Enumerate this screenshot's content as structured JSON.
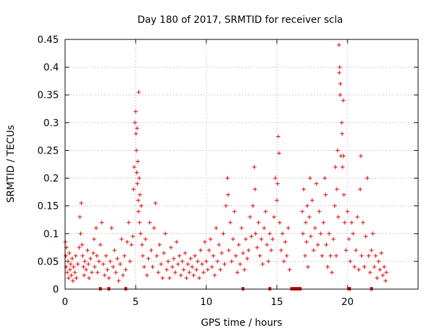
{
  "chart_data": {
    "type": "scatter",
    "title": "Day 180 of 2017, SRMTID for receiver scla",
    "xlabel": "GPS time / hours",
    "ylabel": "SRMTID / TECUs",
    "xlim": [
      0,
      25
    ],
    "ylim": [
      0,
      0.45
    ],
    "grid": true,
    "marker": "+",
    "color": "#e00000",
    "x_ticks": [
      0,
      5,
      10,
      15,
      20
    ],
    "x_tick_labels": [
      "0",
      "5",
      "10",
      "15",
      "20"
    ],
    "y_ticks": [
      0,
      0.05,
      0.1,
      0.15,
      0.2,
      0.25,
      0.3,
      0.35,
      0.4,
      0.45
    ],
    "y_tick_labels": [
      "0",
      "0.05",
      "0.1",
      "0.15",
      "0.2",
      "0.25",
      "0.3",
      "0.35",
      "0.4",
      "0.45"
    ],
    "zero_markers_x": [
      2.5,
      3.1,
      4.3,
      12.6,
      14.5,
      21.7
    ],
    "zero_segments": [
      [
        15.95,
        16.75
      ],
      [
        20.0,
        20.25
      ]
    ],
    "points": [
      [
        0.02,
        0.085
      ],
      [
        0.05,
        0.06
      ],
      [
        0.08,
        0.04
      ],
      [
        0.1,
        0.075
      ],
      [
        0.15,
        0.03
      ],
      [
        0.2,
        0.05
      ],
      [
        0.25,
        0.02
      ],
      [
        0.3,
        0.065
      ],
      [
        0.35,
        0.035
      ],
      [
        0.4,
        0.045
      ],
      [
        0.45,
        0.025
      ],
      [
        0.5,
        0.055
      ],
      [
        0.55,
        0.015
      ],
      [
        0.6,
        0.04
      ],
      [
        0.7,
        0.03
      ],
      [
        0.75,
        0.06
      ],
      [
        0.8,
        0.02
      ],
      [
        0.9,
        0.045
      ],
      [
        1.0,
        0.075
      ],
      [
        1.05,
        0.13
      ],
      [
        1.1,
        0.1
      ],
      [
        1.15,
        0.155
      ],
      [
        1.2,
        0.08
      ],
      [
        1.25,
        0.06
      ],
      [
        1.3,
        0.04
      ],
      [
        1.35,
        0.025
      ],
      [
        1.4,
        0.05
      ],
      [
        1.5,
        0.035
      ],
      [
        1.6,
        0.07
      ],
      [
        1.65,
        0.045
      ],
      [
        1.7,
        0.02
      ],
      [
        1.8,
        0.055
      ],
      [
        1.9,
        0.03
      ],
      [
        2.0,
        0.065
      ],
      [
        2.05,
        0.09
      ],
      [
        2.1,
        0.04
      ],
      [
        2.2,
        0.11
      ],
      [
        2.25,
        0.06
      ],
      [
        2.3,
        0.03
      ],
      [
        2.4,
        0.05
      ],
      [
        2.5,
        0.08
      ],
      [
        2.6,
        0.12
      ],
      [
        2.7,
        0.045
      ],
      [
        2.8,
        0.025
      ],
      [
        2.9,
        0.06
      ],
      [
        3.0,
        0.035
      ],
      [
        3.1,
        0.02
      ],
      [
        3.2,
        0.05
      ],
      [
        3.3,
        0.11
      ],
      [
        3.4,
        0.04
      ],
      [
        3.5,
        0.07
      ],
      [
        3.6,
        0.03
      ],
      [
        3.7,
        0.055
      ],
      [
        3.8,
        0.015
      ],
      [
        3.9,
        0.045
      ],
      [
        4.0,
        0.09
      ],
      [
        4.1,
        0.025
      ],
      [
        4.2,
        0.06
      ],
      [
        4.3,
        0.035
      ],
      [
        4.4,
        0.085
      ],
      [
        4.5,
        0.12
      ],
      [
        4.6,
        0.05
      ],
      [
        4.7,
        0.08
      ],
      [
        4.8,
        0.095
      ],
      [
        4.85,
        0.18
      ],
      [
        4.9,
        0.22
      ],
      [
        4.95,
        0.3
      ],
      [
        5.0,
        0.32
      ],
      [
        5.02,
        0.28
      ],
      [
        5.05,
        0.25
      ],
      [
        5.08,
        0.21
      ],
      [
        5.1,
        0.29
      ],
      [
        5.12,
        0.19
      ],
      [
        5.15,
        0.23
      ],
      [
        5.18,
        0.16
      ],
      [
        5.2,
        0.14
      ],
      [
        5.22,
        0.355
      ],
      [
        5.25,
        0.2
      ],
      [
        5.28,
        0.12
      ],
      [
        5.3,
        0.17
      ],
      [
        5.35,
        0.1
      ],
      [
        5.4,
        0.15
      ],
      [
        5.45,
        0.08
      ],
      [
        5.5,
        0.06
      ],
      [
        5.6,
        0.04
      ],
      [
        5.7,
        0.09
      ],
      [
        5.8,
        0.025
      ],
      [
        5.9,
        0.055
      ],
      [
        6.0,
        0.12
      ],
      [
        6.1,
        0.07
      ],
      [
        6.2,
        0.04
      ],
      [
        6.3,
        0.11
      ],
      [
        6.4,
        0.155
      ],
      [
        6.5,
        0.06
      ],
      [
        6.6,
        0.03
      ],
      [
        6.7,
        0.08
      ],
      [
        6.8,
        0.045
      ],
      [
        6.9,
        0.02
      ],
      [
        7.0,
        0.065
      ],
      [
        7.1,
        0.1
      ],
      [
        7.2,
        0.035
      ],
      [
        7.3,
        0.05
      ],
      [
        7.4,
        0.02
      ],
      [
        7.5,
        0.075
      ],
      [
        7.6,
        0.04
      ],
      [
        7.7,
        0.055
      ],
      [
        7.8,
        0.03
      ],
      [
        7.9,
        0.085
      ],
      [
        8.0,
        0.045
      ],
      [
        8.1,
        0.06
      ],
      [
        8.2,
        0.025
      ],
      [
        8.3,
        0.05
      ],
      [
        8.4,
        0.035
      ],
      [
        8.5,
        0.065
      ],
      [
        8.6,
        0.02
      ],
      [
        8.7,
        0.045
      ],
      [
        8.8,
        0.03
      ],
      [
        8.9,
        0.055
      ],
      [
        9.0,
        0.04
      ],
      [
        9.1,
        0.025
      ],
      [
        9.2,
        0.06
      ],
      [
        9.3,
        0.035
      ],
      [
        9.4,
        0.05
      ],
      [
        9.5,
        0.02
      ],
      [
        9.6,
        0.07
      ],
      [
        9.7,
        0.045
      ],
      [
        9.8,
        0.03
      ],
      [
        9.9,
        0.085
      ],
      [
        10.0,
        0.05
      ],
      [
        10.1,
        0.035
      ],
      [
        10.2,
        0.07
      ],
      [
        10.3,
        0.09
      ],
      [
        10.4,
        0.04
      ],
      [
        10.5,
        0.06
      ],
      [
        10.6,
        0.025
      ],
      [
        10.7,
        0.11
      ],
      [
        10.8,
        0.05
      ],
      [
        10.9,
        0.08
      ],
      [
        11.0,
        0.035
      ],
      [
        11.1,
        0.065
      ],
      [
        11.2,
        0.1
      ],
      [
        11.3,
        0.045
      ],
      [
        11.4,
        0.15
      ],
      [
        11.5,
        0.2
      ],
      [
        11.55,
        0.17
      ],
      [
        11.6,
        0.07
      ],
      [
        11.7,
        0.12
      ],
      [
        11.8,
        0.05
      ],
      [
        11.9,
        0.09
      ],
      [
        12.0,
        0.14
      ],
      [
        12.1,
        0.06
      ],
      [
        12.2,
        0.03
      ],
      [
        12.3,
        0.08
      ],
      [
        12.4,
        0.045
      ],
      [
        12.5,
        0.11
      ],
      [
        12.6,
        0.065
      ],
      [
        12.7,
        0.035
      ],
      [
        12.8,
        0.09
      ],
      [
        12.9,
        0.055
      ],
      [
        13.0,
        0.07
      ],
      [
        13.1,
        0.13
      ],
      [
        13.2,
        0.095
      ],
      [
        13.3,
        0.15
      ],
      [
        13.4,
        0.22
      ],
      [
        13.45,
        0.18
      ],
      [
        13.5,
        0.1
      ],
      [
        13.6,
        0.075
      ],
      [
        13.7,
        0.12
      ],
      [
        13.8,
        0.06
      ],
      [
        13.9,
        0.09
      ],
      [
        14.0,
        0.045
      ],
      [
        14.1,
        0.11
      ],
      [
        14.2,
        0.14
      ],
      [
        14.3,
        0.08
      ],
      [
        14.4,
        0.05
      ],
      [
        14.5,
        0.1
      ],
      [
        14.6,
        0.07
      ],
      [
        14.7,
        0.09
      ],
      [
        14.8,
        0.13
      ],
      [
        14.9,
        0.2
      ],
      [
        15.0,
        0.16
      ],
      [
        15.05,
        0.19
      ],
      [
        15.1,
        0.275
      ],
      [
        15.15,
        0.245
      ],
      [
        15.2,
        0.12
      ],
      [
        15.3,
        0.07
      ],
      [
        15.4,
        0.1
      ],
      [
        15.5,
        0.05
      ],
      [
        15.6,
        0.085
      ],
      [
        15.7,
        0.06
      ],
      [
        15.8,
        0.11
      ],
      [
        15.9,
        0.035
      ],
      [
        16.8,
        0.14
      ],
      [
        16.85,
        0.1
      ],
      [
        16.9,
        0.18
      ],
      [
        17.0,
        0.06
      ],
      [
        17.05,
        0.12
      ],
      [
        17.1,
        0.085
      ],
      [
        17.15,
        0.15
      ],
      [
        17.2,
        0.04
      ],
      [
        17.3,
        0.13
      ],
      [
        17.35,
        0.2
      ],
      [
        17.4,
        0.095
      ],
      [
        17.5,
        0.16
      ],
      [
        17.6,
        0.07
      ],
      [
        17.7,
        0.11
      ],
      [
        17.8,
        0.19
      ],
      [
        17.9,
        0.08
      ],
      [
        18.0,
        0.14
      ],
      [
        18.1,
        0.1
      ],
      [
        18.2,
        0.06
      ],
      [
        18.3,
        0.12
      ],
      [
        18.4,
        0.2
      ],
      [
        18.45,
        0.17
      ],
      [
        18.5,
        0.08
      ],
      [
        18.6,
        0.04
      ],
      [
        18.7,
        0.1
      ],
      [
        18.8,
        0.06
      ],
      [
        18.9,
        0.03
      ],
      [
        19.0,
        0.09
      ],
      [
        19.1,
        0.15
      ],
      [
        19.15,
        0.22
      ],
      [
        19.2,
        0.06
      ],
      [
        19.25,
        0.18
      ],
      [
        19.3,
        0.25
      ],
      [
        19.35,
        0.13
      ],
      [
        19.4,
        0.44
      ],
      [
        19.42,
        0.39
      ],
      [
        19.45,
        0.4
      ],
      [
        19.48,
        0.35
      ],
      [
        19.5,
        0.37
      ],
      [
        19.55,
        0.24
      ],
      [
        19.6,
        0.3
      ],
      [
        19.62,
        0.28
      ],
      [
        19.65,
        0.22
      ],
      [
        19.7,
        0.34
      ],
      [
        19.72,
        0.24
      ],
      [
        19.75,
        0.17
      ],
      [
        19.8,
        0.12
      ],
      [
        19.9,
        0.07
      ],
      [
        20.0,
        0.14
      ],
      [
        20.1,
        0.09
      ],
      [
        20.2,
        0.05
      ],
      [
        20.3,
        0.12
      ],
      [
        20.4,
        0.1
      ],
      [
        20.5,
        0.04
      ],
      [
        20.6,
        0.07
      ],
      [
        20.7,
        0.13
      ],
      [
        20.8,
        0.035
      ],
      [
        20.9,
        0.18
      ],
      [
        20.95,
        0.24
      ],
      [
        21.0,
        0.06
      ],
      [
        21.1,
        0.12
      ],
      [
        21.2,
        0.04
      ],
      [
        21.3,
        0.095
      ],
      [
        21.4,
        0.2
      ],
      [
        21.5,
        0.06
      ],
      [
        21.6,
        0.03
      ],
      [
        21.7,
        0.07
      ],
      [
        21.8,
        0.1
      ],
      [
        21.9,
        0.04
      ],
      [
        22.0,
        0.06
      ],
      [
        22.1,
        0.02
      ],
      [
        22.2,
        0.05
      ],
      [
        22.3,
        0.035
      ],
      [
        22.4,
        0.065
      ],
      [
        22.5,
        0.025
      ],
      [
        22.6,
        0.04
      ],
      [
        22.7,
        0.015
      ],
      [
        22.75,
        0.03
      ]
    ]
  }
}
